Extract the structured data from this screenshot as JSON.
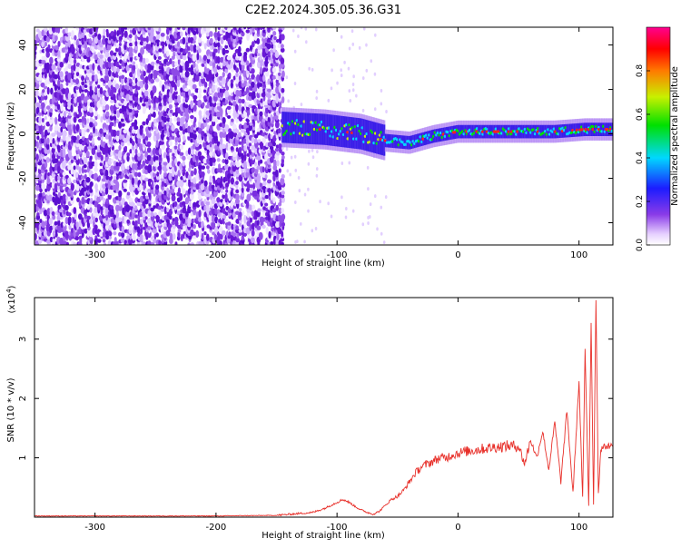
{
  "title": "C2E2.2024.305.05.36.G31",
  "chart_data": [
    {
      "type": "heatmap",
      "title": "C2E2.2024.305.05.36.G31",
      "xlabel": "Height of straight line (km)",
      "ylabel": "Frequency (Hz)",
      "xlim": [
        -350,
        128
      ],
      "ylim": [
        -50,
        48
      ],
      "x_ticks": [
        -300,
        -200,
        -100,
        0,
        100
      ],
      "y_ticks": [
        -40,
        -20,
        0,
        20,
        40
      ],
      "grid": false,
      "colorbar": {
        "label": "Normalized spectral amplitude",
        "range": [
          0,
          1
        ],
        "ticks": [
          0.0,
          0.2,
          0.4,
          0.6,
          0.8
        ],
        "colormap": "rainbow (white, violet, blue, cyan, green, yellow, red, magenta)"
      },
      "noise_region_x": [
        -350,
        -145
      ],
      "signal_band": [
        {
          "x": -145,
          "f": 3
        },
        {
          "x": -110,
          "f": 2
        },
        {
          "x": -80,
          "f": 0
        },
        {
          "x": -60,
          "f": -3
        },
        {
          "x": -40,
          "f": -4
        },
        {
          "x": -20,
          "f": -1
        },
        {
          "x": 0,
          "f": 1
        },
        {
          "x": 40,
          "f": 1
        },
        {
          "x": 80,
          "f": 1
        },
        {
          "x": 105,
          "f": 2
        },
        {
          "x": 128,
          "f": 2
        }
      ]
    },
    {
      "type": "line",
      "xlabel": "Height of straight line (km)",
      "ylabel": "SNR (10 * v/v)",
      "y_multiplier": "(x10^4)",
      "xlim": [
        -350,
        128
      ],
      "ylim": [
        0,
        3.7
      ],
      "x_ticks": [
        -300,
        -200,
        -100,
        0,
        100
      ],
      "y_ticks": [
        1,
        2,
        3
      ],
      "grid": false,
      "series": [
        {
          "color": "#e8302a",
          "x": [
            -350,
            -300,
            -250,
            -200,
            -150,
            -120,
            -110,
            -100,
            -95,
            -90,
            -85,
            -80,
            -75,
            -70,
            -65,
            -60,
            -55,
            -50,
            -45,
            -40,
            -35,
            -30,
            -25,
            -20,
            -15,
            -10,
            -5,
            0,
            10,
            20,
            30,
            40,
            50,
            55,
            60,
            65,
            70,
            75,
            80,
            85,
            90,
            95,
            100,
            103,
            105,
            108,
            110,
            112,
            114,
            116,
            118,
            120,
            125,
            128
          ],
          "y": [
            0.02,
            0.02,
            0.02,
            0.02,
            0.03,
            0.08,
            0.15,
            0.25,
            0.3,
            0.25,
            0.18,
            0.12,
            0.08,
            0.05,
            0.1,
            0.2,
            0.3,
            0.35,
            0.45,
            0.6,
            0.75,
            0.85,
            0.9,
            0.95,
            1.0,
            1.0,
            1.05,
            1.08,
            1.12,
            1.15,
            1.18,
            1.2,
            1.2,
            0.9,
            1.3,
            1.0,
            1.45,
            0.8,
            1.6,
            0.6,
            1.8,
            0.4,
            2.3,
            0.3,
            2.8,
            0.2,
            3.3,
            0.2,
            3.7,
            0.4,
            1.15,
            1.18,
            1.2,
            1.2
          ]
        }
      ]
    }
  ]
}
